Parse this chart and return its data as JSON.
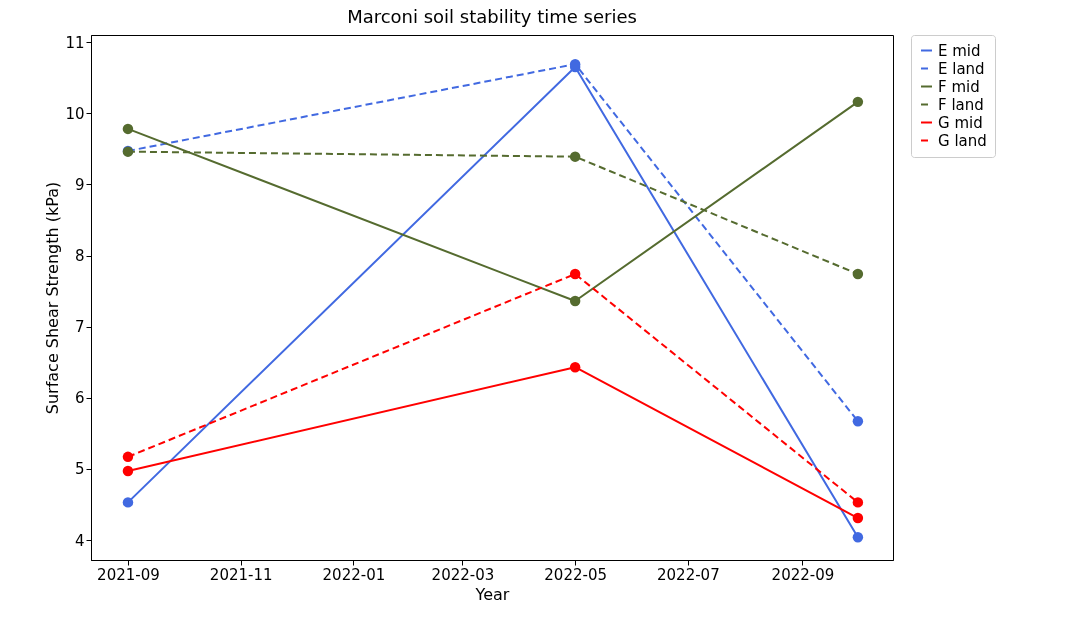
{
  "chart_data": {
    "type": "line",
    "title": "Marconi soil stability time series",
    "xlabel": "Year",
    "ylabel": "Surface Shear Strength (kPa)",
    "x": [
      "2021-09-01",
      "2022-05-01",
      "2022-10-01"
    ],
    "series": [
      {
        "name": "E mid",
        "color": "#4169e1",
        "line_style": "solid",
        "values": [
          4.53,
          10.65,
          4.04
        ]
      },
      {
        "name": "E land",
        "color": "#4169e1",
        "line_style": "dashed",
        "values": [
          9.47,
          10.69,
          5.67
        ]
      },
      {
        "name": "F mid",
        "color": "#556b2f",
        "line_style": "solid",
        "values": [
          9.78,
          7.36,
          10.16
        ]
      },
      {
        "name": "F land",
        "color": "#556b2f",
        "line_style": "dashed",
        "values": [
          9.46,
          9.39,
          7.74
        ]
      },
      {
        "name": "G mid",
        "color": "#ff0000",
        "line_style": "solid",
        "values": [
          4.97,
          6.43,
          4.31
        ]
      },
      {
        "name": "G land",
        "color": "#ff0000",
        "line_style": "dashed",
        "values": [
          5.17,
          7.74,
          4.53
        ]
      }
    ],
    "xlim": [
      "2021-08-12",
      "2022-10-20"
    ],
    "xticks": [
      "2021-09",
      "2021-11",
      "2022-01",
      "2022-03",
      "2022-05",
      "2022-07",
      "2022-09"
    ],
    "ylim": [
      3.72,
      11.1
    ],
    "yticks": [
      4,
      5,
      6,
      7,
      8,
      9,
      10,
      11
    ],
    "marker": "circle",
    "legend": "right",
    "grid": false
  }
}
